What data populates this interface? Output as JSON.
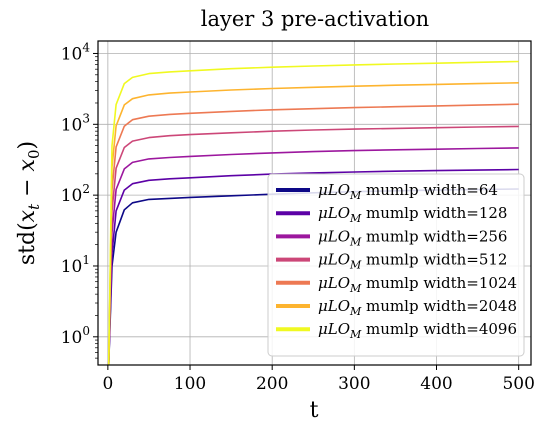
{
  "chart_data": {
    "type": "line",
    "title": "layer 3 pre-activation",
    "xlabel": "t",
    "ylabel": "std(x_t − x_0)",
    "xlim": [
      -12,
      515
    ],
    "ylim": [
      0.4,
      15000
    ],
    "y_scale": "log",
    "grid": true,
    "legend_position": "lower-right",
    "x_ticks": [
      0,
      100,
      200,
      300,
      400,
      500
    ],
    "x_tick_labels": [
      "0",
      "100",
      "200",
      "300",
      "400",
      "500"
    ],
    "y_ticks": [
      1,
      10,
      100,
      1000,
      10000
    ],
    "y_tick_labels": [
      "10^0",
      "10^1",
      "10^2",
      "10^3",
      "10^4"
    ],
    "legend_prefix": "μLO_M",
    "series": [
      {
        "name": "μLO_M mumlp width=64",
        "label_suffix": "mumlp width=64",
        "color": "#0d0887",
        "x": [
          1,
          5,
          10,
          20,
          30,
          50,
          75,
          100,
          150,
          200,
          250,
          300,
          350,
          400,
          450,
          500
        ],
        "y": [
          0.4,
          10,
          30,
          62,
          78,
          87,
          90,
          93,
          98,
          103,
          108,
          112,
          115,
          118,
          120,
          122
        ]
      },
      {
        "name": "μLO_M mumlp width=128",
        "label_suffix": "mumlp width=128",
        "color": "#5c01a6",
        "x": [
          1,
          5,
          10,
          20,
          30,
          50,
          75,
          100,
          150,
          200,
          250,
          300,
          350,
          400,
          450,
          500
        ],
        "y": [
          0.4,
          15,
          60,
          118,
          145,
          162,
          170,
          176,
          188,
          198,
          206,
          212,
          218,
          222,
          226,
          230
        ]
      },
      {
        "name": "μLO_M mumlp width=256",
        "label_suffix": "mumlp width=256",
        "color": "#9c179e",
        "x": [
          1,
          5,
          10,
          20,
          30,
          50,
          75,
          100,
          150,
          200,
          250,
          300,
          350,
          400,
          450,
          500
        ],
        "y": [
          0.4,
          30,
          120,
          235,
          290,
          325,
          340,
          352,
          375,
          395,
          412,
          425,
          436,
          445,
          455,
          465
        ]
      },
      {
        "name": "μLO_M mumlp width=512",
        "label_suffix": "mumlp width=512",
        "color": "#cc4778",
        "x": [
          1,
          5,
          10,
          20,
          30,
          50,
          75,
          100,
          150,
          200,
          250,
          300,
          350,
          400,
          450,
          500
        ],
        "y": [
          0.4,
          60,
          240,
          470,
          580,
          650,
          690,
          715,
          760,
          800,
          830,
          855,
          875,
          895,
          915,
          935
        ]
      },
      {
        "name": "μLO_M mumlp width=1024",
        "label_suffix": "mumlp width=1024",
        "color": "#ed7953",
        "x": [
          1,
          5,
          10,
          20,
          30,
          50,
          75,
          100,
          150,
          200,
          250,
          300,
          350,
          400,
          450,
          500
        ],
        "y": [
          0.4,
          120,
          480,
          940,
          1160,
          1300,
          1380,
          1430,
          1520,
          1600,
          1660,
          1720,
          1770,
          1820,
          1870,
          1920
        ]
      },
      {
        "name": "μLO_M mumlp width=2048",
        "label_suffix": "mumlp width=2048",
        "color": "#fdb42f",
        "x": [
          1,
          5,
          10,
          20,
          30,
          50,
          75,
          100,
          150,
          200,
          250,
          300,
          350,
          400,
          450,
          500
        ],
        "y": [
          0.4,
          250,
          950,
          1880,
          2300,
          2600,
          2760,
          2860,
          3050,
          3200,
          3330,
          3450,
          3560,
          3660,
          3760,
          3860
        ]
      },
      {
        "name": "μLO_M mumlp width=4096",
        "label_suffix": "mumlp width=4096",
        "color": "#f0f921",
        "x": [
          1,
          5,
          10,
          20,
          30,
          50,
          75,
          100,
          150,
          200,
          250,
          300,
          350,
          400,
          450,
          500
        ],
        "y": [
          0.4,
          500,
          1900,
          3750,
          4600,
          5200,
          5500,
          5700,
          6100,
          6400,
          6650,
          6900,
          7100,
          7300,
          7500,
          7700
        ]
      }
    ]
  }
}
